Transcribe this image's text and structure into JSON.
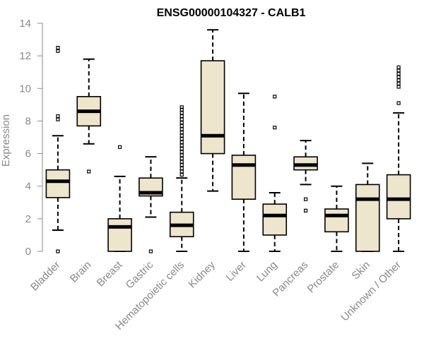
{
  "chart_data": {
    "type": "boxplot",
    "title": "ENSG00000104327 - CALB1",
    "xlabel": "",
    "ylabel": "Expression",
    "ylim": [
      0,
      14
    ],
    "yticks": [
      0,
      2,
      4,
      6,
      8,
      10,
      12,
      14
    ],
    "grid": false,
    "colors": {
      "box_fill": "#EDE5CC",
      "stroke": "#000000",
      "axis": "#888888"
    },
    "categories": [
      "Bladder",
      "Brain",
      "Breast",
      "Gastric",
      "Hematopoietic cells",
      "Kidney",
      "Liver",
      "Lung",
      "Pancreas",
      "Prostate",
      "Skin",
      "Unknown / Other"
    ],
    "boxes": [
      {
        "category": "Bladder",
        "whisker_low": 1.3,
        "q1": 3.3,
        "median": 4.3,
        "q3": 5.0,
        "whisker_high": 7.1,
        "outliers": [
          0.0,
          8.1,
          8.3,
          12.3,
          12.5
        ]
      },
      {
        "category": "Brain",
        "whisker_low": 6.6,
        "q1": 7.7,
        "median": 8.6,
        "q3": 9.5,
        "whisker_high": 11.8,
        "outliers": [
          4.9
        ]
      },
      {
        "category": "Breast",
        "whisker_low": 0.0,
        "q1": 0.0,
        "median": 1.5,
        "q3": 2.0,
        "whisker_high": 4.6,
        "outliers": [
          6.4
        ]
      },
      {
        "category": "Gastric",
        "whisker_low": 2.1,
        "q1": 3.4,
        "median": 3.6,
        "q3": 4.5,
        "whisker_high": 5.8,
        "outliers": [
          0.0
        ]
      },
      {
        "category": "Hematopoietic cells",
        "whisker_low": 0.0,
        "q1": 0.9,
        "median": 1.6,
        "q3": 2.4,
        "whisker_high": 4.5,
        "outliers": [
          4.7,
          4.9,
          5.1,
          5.3,
          5.5,
          5.7,
          5.9,
          6.1,
          6.3,
          6.5,
          6.7,
          6.9,
          7.1,
          7.3,
          7.5,
          7.7,
          7.9,
          8.1,
          8.3,
          8.5,
          8.7,
          8.85
        ]
      },
      {
        "category": "Kidney",
        "whisker_low": 3.7,
        "q1": 6.0,
        "median": 7.1,
        "q3": 11.7,
        "whisker_high": 13.6,
        "outliers": []
      },
      {
        "category": "Liver",
        "whisker_low": 0.0,
        "q1": 3.2,
        "median": 5.3,
        "q3": 5.9,
        "whisker_high": 9.7,
        "outliers": []
      },
      {
        "category": "Lung",
        "whisker_low": 0.0,
        "q1": 1.0,
        "median": 2.2,
        "q3": 2.9,
        "whisker_high": 3.6,
        "outliers": [
          7.6,
          9.5
        ]
      },
      {
        "category": "Pancreas",
        "whisker_low": 4.1,
        "q1": 5.0,
        "median": 5.3,
        "q3": 5.8,
        "whisker_high": 6.8,
        "outliers": [
          2.5,
          3.2
        ]
      },
      {
        "category": "Prostate",
        "whisker_low": 0.0,
        "q1": 1.2,
        "median": 2.2,
        "q3": 2.6,
        "whisker_high": 4.0,
        "outliers": []
      },
      {
        "category": "Skin",
        "whisker_low": 0.0,
        "q1": 0.0,
        "median": 3.2,
        "q3": 4.1,
        "whisker_high": 5.4,
        "outliers": []
      },
      {
        "category": "Unknown / Other",
        "whisker_low": 0.0,
        "q1": 2.0,
        "median": 3.2,
        "q3": 4.7,
        "whisker_high": 8.5,
        "outliers": [
          9.1,
          10.1,
          10.3,
          10.5,
          10.7,
          10.9,
          11.1,
          11.3
        ]
      }
    ]
  }
}
